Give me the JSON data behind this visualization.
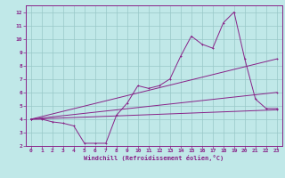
{
  "xlabel": "Windchill (Refroidissement éolien,°C)",
  "bg_color": "#c0e8e8",
  "grid_color": "#98c8c8",
  "line_color": "#882288",
  "spine_color": "#882288",
  "xlim": [
    -0.5,
    23.5
  ],
  "ylim": [
    2,
    12.5
  ],
  "xticks": [
    0,
    1,
    2,
    3,
    4,
    5,
    6,
    7,
    8,
    9,
    10,
    11,
    12,
    13,
    14,
    15,
    16,
    17,
    18,
    19,
    20,
    21,
    22,
    23
  ],
  "yticks": [
    2,
    3,
    4,
    5,
    6,
    7,
    8,
    9,
    10,
    11,
    12
  ],
  "line1_x": [
    0,
    1,
    2,
    3,
    4,
    5,
    6,
    7,
    8,
    9,
    10,
    11,
    12,
    13,
    14,
    15,
    16,
    17,
    18,
    19,
    20,
    21,
    22,
    23
  ],
  "line1_y": [
    4.0,
    4.0,
    3.8,
    3.7,
    3.5,
    2.2,
    2.2,
    2.2,
    4.3,
    5.2,
    6.5,
    6.3,
    6.5,
    7.0,
    8.7,
    10.2,
    9.6,
    9.3,
    11.2,
    12.0,
    8.5,
    5.5,
    4.8,
    4.8
  ],
  "line2_x": [
    0,
    23
  ],
  "line2_y": [
    4.0,
    8.5
  ],
  "line3_x": [
    0,
    23
  ],
  "line3_y": [
    4.0,
    6.0
  ],
  "line4_x": [
    0,
    23
  ],
  "line4_y": [
    4.0,
    4.7
  ],
  "tick_fontsize": 4.5,
  "xlabel_fontsize": 5.0,
  "lw": 0.7,
  "ms": 2.0
}
